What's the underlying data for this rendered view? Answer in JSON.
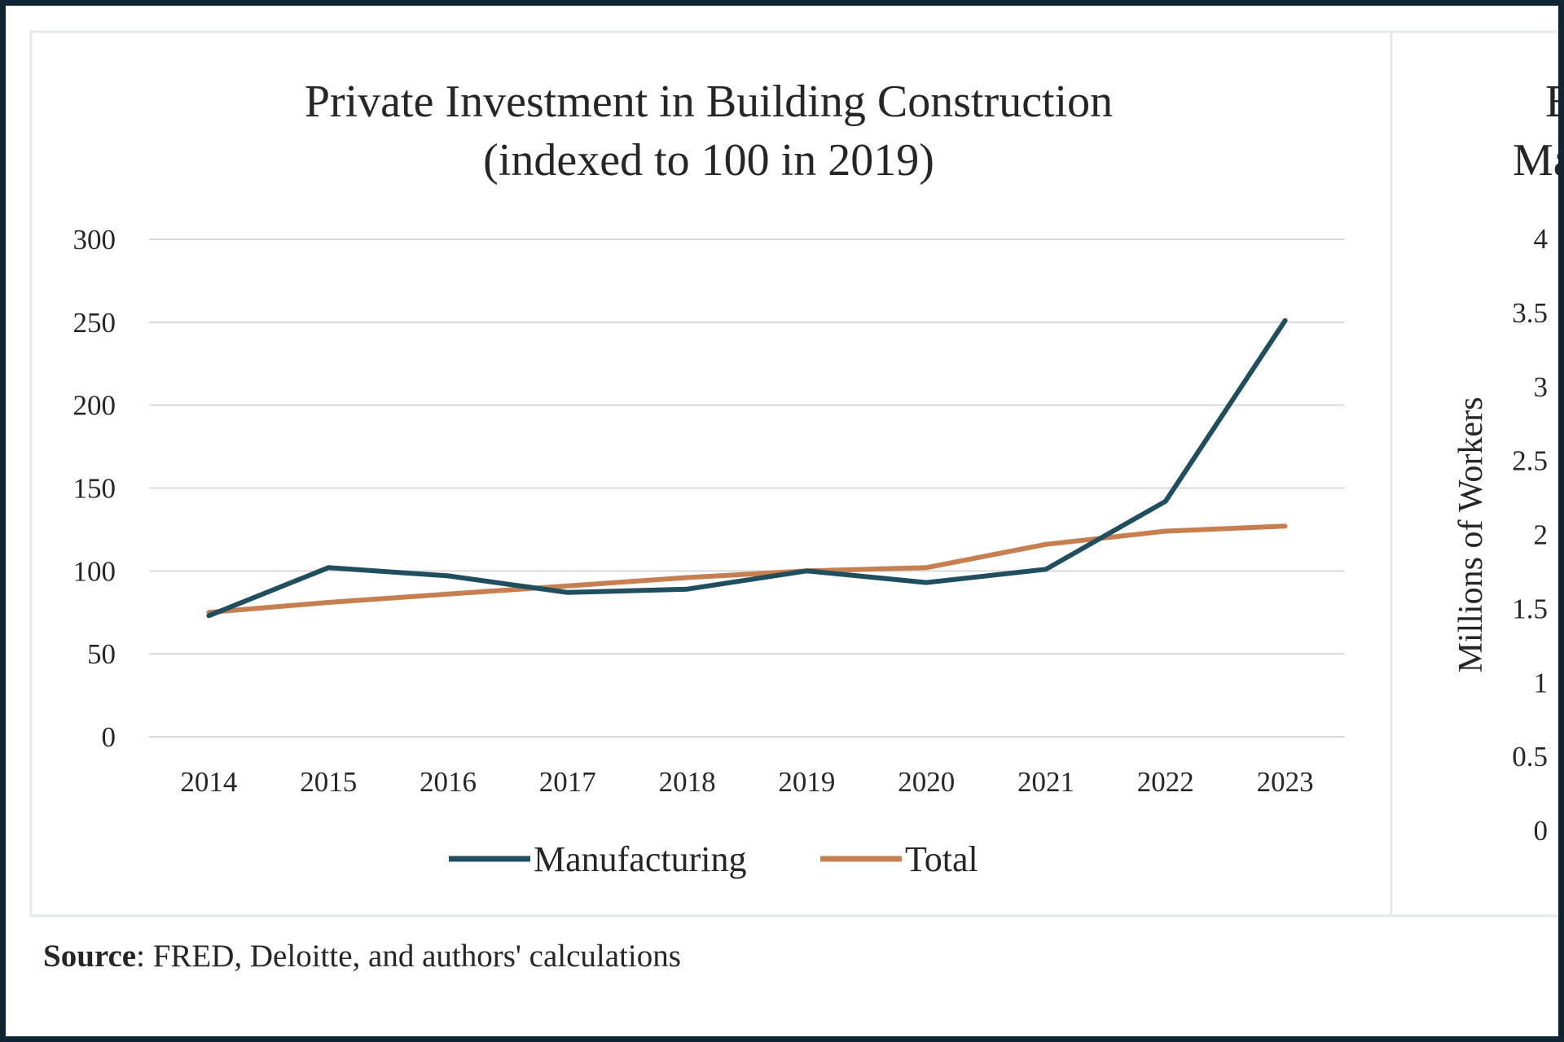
{
  "source": {
    "label": "Source",
    "text": ": FRED, Deloitte, and authors' calculations"
  },
  "colors": {
    "manufacturing": "#1f4e5f",
    "total": "#c77f4f",
    "grid": "#d9d9d9",
    "panel_border": "#e4ebe7"
  },
  "chart_data": [
    {
      "type": "line",
      "title": [
        "Private Investment in Building Construction",
        "(indexed to 100 in 2019)"
      ],
      "xlabel": "",
      "ylabel": "",
      "categories": [
        "2014",
        "2015",
        "2016",
        "2017",
        "2018",
        "2019",
        "2020",
        "2021",
        "2022",
        "2023"
      ],
      "ylim": [
        0,
        300
      ],
      "yticks": [
        "0",
        "50",
        "100",
        "150",
        "200",
        "250",
        "300"
      ],
      "grid": true,
      "legend_position": "bottom",
      "series": [
        {
          "name": "Manufacturing",
          "values": [
            73,
            102,
            97,
            87,
            89,
            100,
            93,
            101,
            142,
            251
          ]
        },
        {
          "name": "Total",
          "values": [
            75,
            81,
            86,
            91,
            96,
            100,
            102,
            116,
            124,
            127
          ]
        }
      ]
    },
    {
      "type": "line",
      "title": [
        "E",
        "Ma"
      ],
      "ylabel": "Millions of Workers",
      "ylim": [
        0,
        4
      ],
      "yticks": [
        "0",
        "0.5",
        "1",
        "1.5",
        "2",
        "2.5",
        "3",
        "3.5",
        "4"
      ],
      "note": "partially visible panel, data cropped"
    }
  ]
}
